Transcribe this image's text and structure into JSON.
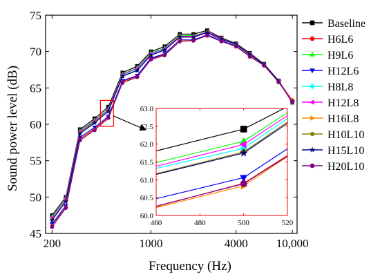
{
  "chart_data": {
    "type": "line",
    "xlabel": "Frequency (Hz)",
    "ylabel": "Sound power level (dB)",
    "xscale": "log",
    "xlim": [
      180,
      10800
    ],
    "ylim": [
      45,
      75
    ],
    "xticks": [
      200,
      1000,
      4000,
      10000
    ],
    "xtick_labels": [
      "200",
      "1000",
      "4000",
      "10,000"
    ],
    "yticks": [
      45,
      50,
      55,
      60,
      65,
      70,
      75
    ],
    "ytick_labels": [
      "45",
      "50",
      "55",
      "60",
      "65",
      "70",
      "75"
    ],
    "legend_position": "right",
    "x": [
      200,
      250,
      315,
      400,
      500,
      630,
      800,
      1000,
      1250,
      1600,
      2000,
      2500,
      3150,
      4000,
      5000,
      6300,
      8000,
      10000
    ],
    "series": [
      {
        "name": "Baseline",
        "color": "#000000",
        "marker": "square",
        "values": [
          47.5,
          50.0,
          59.3,
          60.8,
          62.4,
          67.1,
          68.0,
          70.0,
          70.7,
          72.4,
          72.4,
          72.9,
          71.9,
          71.1,
          69.8,
          68.3,
          66.0,
          63.0
        ]
      },
      {
        "name": "H6L6",
        "color": "#ff0000",
        "marker": "circle",
        "values": [
          46.1,
          48.6,
          58.0,
          59.4,
          60.9,
          65.9,
          66.6,
          69.0,
          69.6,
          71.6,
          71.6,
          72.2,
          71.5,
          70.8,
          69.4,
          68.1,
          65.9,
          63.3
        ]
      },
      {
        "name": "H9L6",
        "color": "#00ff00",
        "marker": "triangle-up",
        "values": [
          47.3,
          49.9,
          59.1,
          60.6,
          62.1,
          66.9,
          67.8,
          69.8,
          70.5,
          72.2,
          72.2,
          72.7,
          71.8,
          71.0,
          69.7,
          68.2,
          65.9,
          63.0
        ]
      },
      {
        "name": "H12L6",
        "color": "#0000ff",
        "marker": "triangle-down",
        "values": [
          46.3,
          48.8,
          58.2,
          59.6,
          61.1,
          66.0,
          66.7,
          69.1,
          69.7,
          71.6,
          71.6,
          72.3,
          71.5,
          70.8,
          69.4,
          68.1,
          65.9,
          63.1
        ]
      },
      {
        "name": "H8L8",
        "color": "#00ffff",
        "marker": "diamond",
        "values": [
          47.0,
          49.6,
          58.9,
          60.4,
          61.8,
          66.7,
          67.5,
          69.6,
          70.3,
          72.0,
          72.0,
          72.6,
          71.7,
          71.0,
          69.6,
          68.2,
          65.9,
          63.0
        ]
      },
      {
        "name": "H12L8",
        "color": "#ff00ff",
        "marker": "triangle-left",
        "values": [
          47.2,
          49.8,
          59.0,
          60.5,
          62.0,
          66.8,
          67.7,
          69.7,
          70.4,
          72.1,
          72.1,
          72.7,
          71.8,
          71.0,
          69.7,
          68.2,
          65.9,
          63.0
        ]
      },
      {
        "name": "H16L8",
        "color": "#ff8c00",
        "marker": "triangle-right",
        "values": [
          46.0,
          48.5,
          57.9,
          59.3,
          60.8,
          65.8,
          66.5,
          68.9,
          69.5,
          71.5,
          71.5,
          72.2,
          71.4,
          70.7,
          69.4,
          68.1,
          65.8,
          63.2
        ]
      },
      {
        "name": "H10L10",
        "color": "#808000",
        "marker": "hexagon",
        "values": [
          46.9,
          49.5,
          58.8,
          60.3,
          61.8,
          66.6,
          67.4,
          69.5,
          70.2,
          72.0,
          72.0,
          72.6,
          71.7,
          71.0,
          69.6,
          68.2,
          65.9,
          63.0
        ]
      },
      {
        "name": "H15L10",
        "color": "#000080",
        "marker": "star",
        "values": [
          46.8,
          49.4,
          58.7,
          60.2,
          61.8,
          66.6,
          67.4,
          69.5,
          70.2,
          72.0,
          72.0,
          72.6,
          71.7,
          71.0,
          69.6,
          68.2,
          65.9,
          63.0
        ]
      },
      {
        "name": "H20L10",
        "color": "#800080",
        "marker": "circle",
        "values": [
          45.9,
          48.5,
          57.8,
          59.2,
          60.9,
          65.7,
          66.5,
          68.9,
          69.5,
          71.4,
          71.5,
          72.2,
          71.4,
          70.7,
          69.3,
          68.1,
          65.8,
          63.1
        ]
      }
    ],
    "inset": {
      "xlim": [
        460,
        520
      ],
      "ylim": [
        60.0,
        63.0
      ],
      "xticks": [
        460,
        480,
        500,
        520
      ],
      "xtick_labels": [
        "460",
        "480",
        "500",
        "520"
      ],
      "yticks": [
        60.0,
        60.5,
        61.0,
        61.5,
        62.0,
        62.5,
        63.0
      ],
      "ytick_labels": [
        "60.0",
        "60.5",
        "61.0",
        "61.5",
        "62.0",
        "62.5",
        "63.0"
      ],
      "frame_color": "#ff0000",
      "zoom_region": {
        "x": [
          460,
          520
        ],
        "y": [
          60.0,
          63.0
        ]
      },
      "marker_x": 500,
      "lines": [
        {
          "series": "Baseline",
          "y_at_460": 61.81,
          "y_at_500": 62.42,
          "y_at_520": 63.05
        },
        {
          "series": "H6L6",
          "y_at_460": 60.25,
          "y_at_500": 60.9,
          "y_at_520": 61.68
        },
        {
          "series": "H9L6",
          "y_at_460": 61.48,
          "y_at_500": 62.08,
          "y_at_520": 62.88
        },
        {
          "series": "H12L6",
          "y_at_460": 60.47,
          "y_at_500": 61.06,
          "y_at_520": 61.87
        },
        {
          "series": "H8L8",
          "y_at_460": 61.32,
          "y_at_500": 61.88,
          "y_at_520": 62.72
        },
        {
          "series": "H12L8",
          "y_at_460": 61.38,
          "y_at_500": 61.99,
          "y_at_520": 62.8
        },
        {
          "series": "H16L8",
          "y_at_460": 60.22,
          "y_at_500": 60.83,
          "y_at_520": 61.65
        },
        {
          "series": "H10L10",
          "y_at_460": 61.17,
          "y_at_500": 61.78,
          "y_at_520": 62.62
        },
        {
          "series": "H15L10",
          "y_at_460": 61.15,
          "y_at_500": 61.75,
          "y_at_520": 62.58
        },
        {
          "series": "H20L10",
          "y_at_460": 60.26,
          "y_at_500": 60.89,
          "y_at_520": 61.66
        }
      ]
    }
  }
}
